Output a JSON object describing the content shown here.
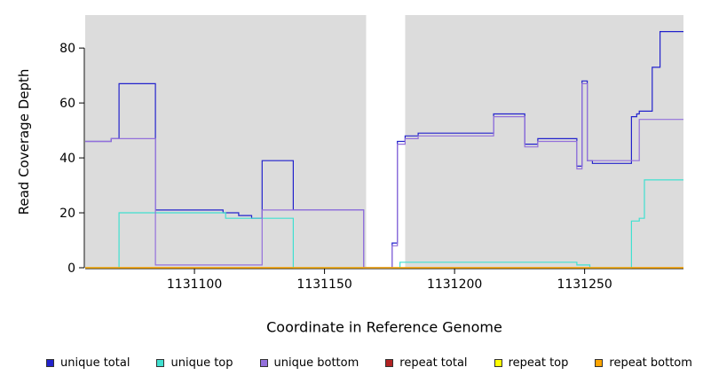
{
  "chart_data": {
    "type": "line",
    "step": "after",
    "title": "",
    "xlabel": "Coordinate in Reference Genome",
    "ylabel": "Read Coverage Depth",
    "xlim": [
      1131058,
      1131288
    ],
    "ylim": [
      0,
      92
    ],
    "xticks": [
      1131100,
      1131150,
      1131200,
      1131250
    ],
    "yticks": [
      0,
      20,
      40,
      60,
      80
    ],
    "grid": false,
    "legend_position": "bottom",
    "panel_bg": "#DCDCDC",
    "page_bg": "#FFFFFF",
    "axis_color": "#000000",
    "gap_region": {
      "x0": 1131166,
      "x1": 1131181,
      "color": "#FFFFFF"
    },
    "series": [
      {
        "name": "unique total",
        "color": "#2222CC",
        "points": [
          [
            1131058,
            46
          ],
          [
            1131068,
            47
          ],
          [
            1131071,
            67
          ],
          [
            1131085,
            21
          ],
          [
            1131111,
            20
          ],
          [
            1131117,
            19
          ],
          [
            1131122,
            18
          ],
          [
            1131126,
            39
          ],
          [
            1131138,
            21
          ],
          [
            1131165,
            0
          ],
          [
            1131176,
            9
          ],
          [
            1131178,
            46
          ],
          [
            1131181,
            48
          ],
          [
            1131186,
            49
          ],
          [
            1131215,
            56
          ],
          [
            1131227,
            45
          ],
          [
            1131232,
            47
          ],
          [
            1131247,
            37
          ],
          [
            1131249,
            68
          ],
          [
            1131251,
            39
          ],
          [
            1131253,
            38
          ],
          [
            1131268,
            55
          ],
          [
            1131270,
            56
          ],
          [
            1131271,
            57
          ],
          [
            1131276,
            73
          ],
          [
            1131279,
            86
          ],
          [
            1131288,
            86
          ]
        ]
      },
      {
        "name": "unique top",
        "color": "#40E0D0",
        "points": [
          [
            1131058,
            0
          ],
          [
            1131071,
            20
          ],
          [
            1131112,
            18
          ],
          [
            1131138,
            0
          ],
          [
            1131179,
            2
          ],
          [
            1131247,
            1
          ],
          [
            1131252,
            0
          ],
          [
            1131268,
            17
          ],
          [
            1131271,
            18
          ],
          [
            1131273,
            32
          ],
          [
            1131288,
            32
          ]
        ]
      },
      {
        "name": "unique bottom",
        "color": "#9370DB",
        "points": [
          [
            1131058,
            46
          ],
          [
            1131068,
            47
          ],
          [
            1131085,
            1
          ],
          [
            1131126,
            21
          ],
          [
            1131165,
            0
          ],
          [
            1131176,
            8
          ],
          [
            1131178,
            45
          ],
          [
            1131181,
            47
          ],
          [
            1131186,
            48
          ],
          [
            1131215,
            55
          ],
          [
            1131227,
            44
          ],
          [
            1131232,
            46
          ],
          [
            1131247,
            36
          ],
          [
            1131249,
            67
          ],
          [
            1131251,
            39
          ],
          [
            1131271,
            54
          ],
          [
            1131288,
            54
          ]
        ]
      },
      {
        "name": "repeat total",
        "color": "#B22222",
        "points": [
          [
            1131058,
            0
          ],
          [
            1131288,
            0
          ]
        ]
      },
      {
        "name": "repeat top",
        "color": "#FFFF00",
        "points": [
          [
            1131058,
            0
          ],
          [
            1131288,
            0
          ]
        ]
      },
      {
        "name": "repeat bottom",
        "color": "#FFA500",
        "points": [
          [
            1131058,
            0
          ],
          [
            1131288,
            0
          ]
        ]
      }
    ]
  }
}
